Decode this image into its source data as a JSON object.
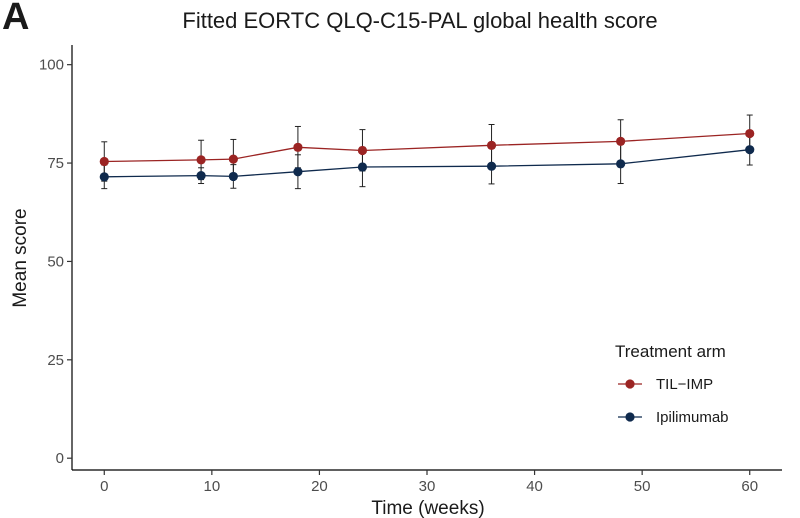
{
  "panel_label": "A",
  "chart_data": {
    "type": "line",
    "title": "Fitted EORTC QLQ-C15-PAL global health score",
    "xlabel": "Time (weeks)",
    "ylabel": "Mean score",
    "xlim": [
      -3,
      63
    ],
    "ylim": [
      -3,
      105
    ],
    "xticks": [
      0,
      10,
      20,
      30,
      40,
      50,
      60
    ],
    "yticks": [
      0,
      25,
      50,
      75,
      100
    ],
    "grid": false,
    "legend": {
      "title": "Treatment arm",
      "position": "right"
    },
    "x": [
      0,
      9,
      12,
      18,
      24,
      36,
      48,
      60
    ],
    "series": [
      {
        "name": "TIL−IMP",
        "color": "#9b2423",
        "values": [
          75.4,
          75.8,
          76.0,
          79.0,
          78.2,
          79.5,
          80.5,
          82.5
        ],
        "lower": [
          70.4,
          70.8,
          71.0,
          73.8,
          73.0,
          74.3,
          75.2,
          77.8
        ],
        "upper": [
          80.4,
          80.8,
          81.0,
          84.3,
          83.5,
          84.8,
          86.0,
          87.2
        ]
      },
      {
        "name": "Ipilimumab",
        "color": "#0f2a4d",
        "values": [
          71.5,
          71.8,
          71.6,
          72.8,
          74.0,
          74.2,
          74.8,
          78.4
        ],
        "lower": [
          68.5,
          69.8,
          68.6,
          68.5,
          69.0,
          69.7,
          69.8,
          74.5
        ],
        "upper": [
          74.5,
          73.8,
          74.6,
          77.1,
          79.0,
          78.7,
          79.8,
          82.3
        ]
      }
    ]
  }
}
